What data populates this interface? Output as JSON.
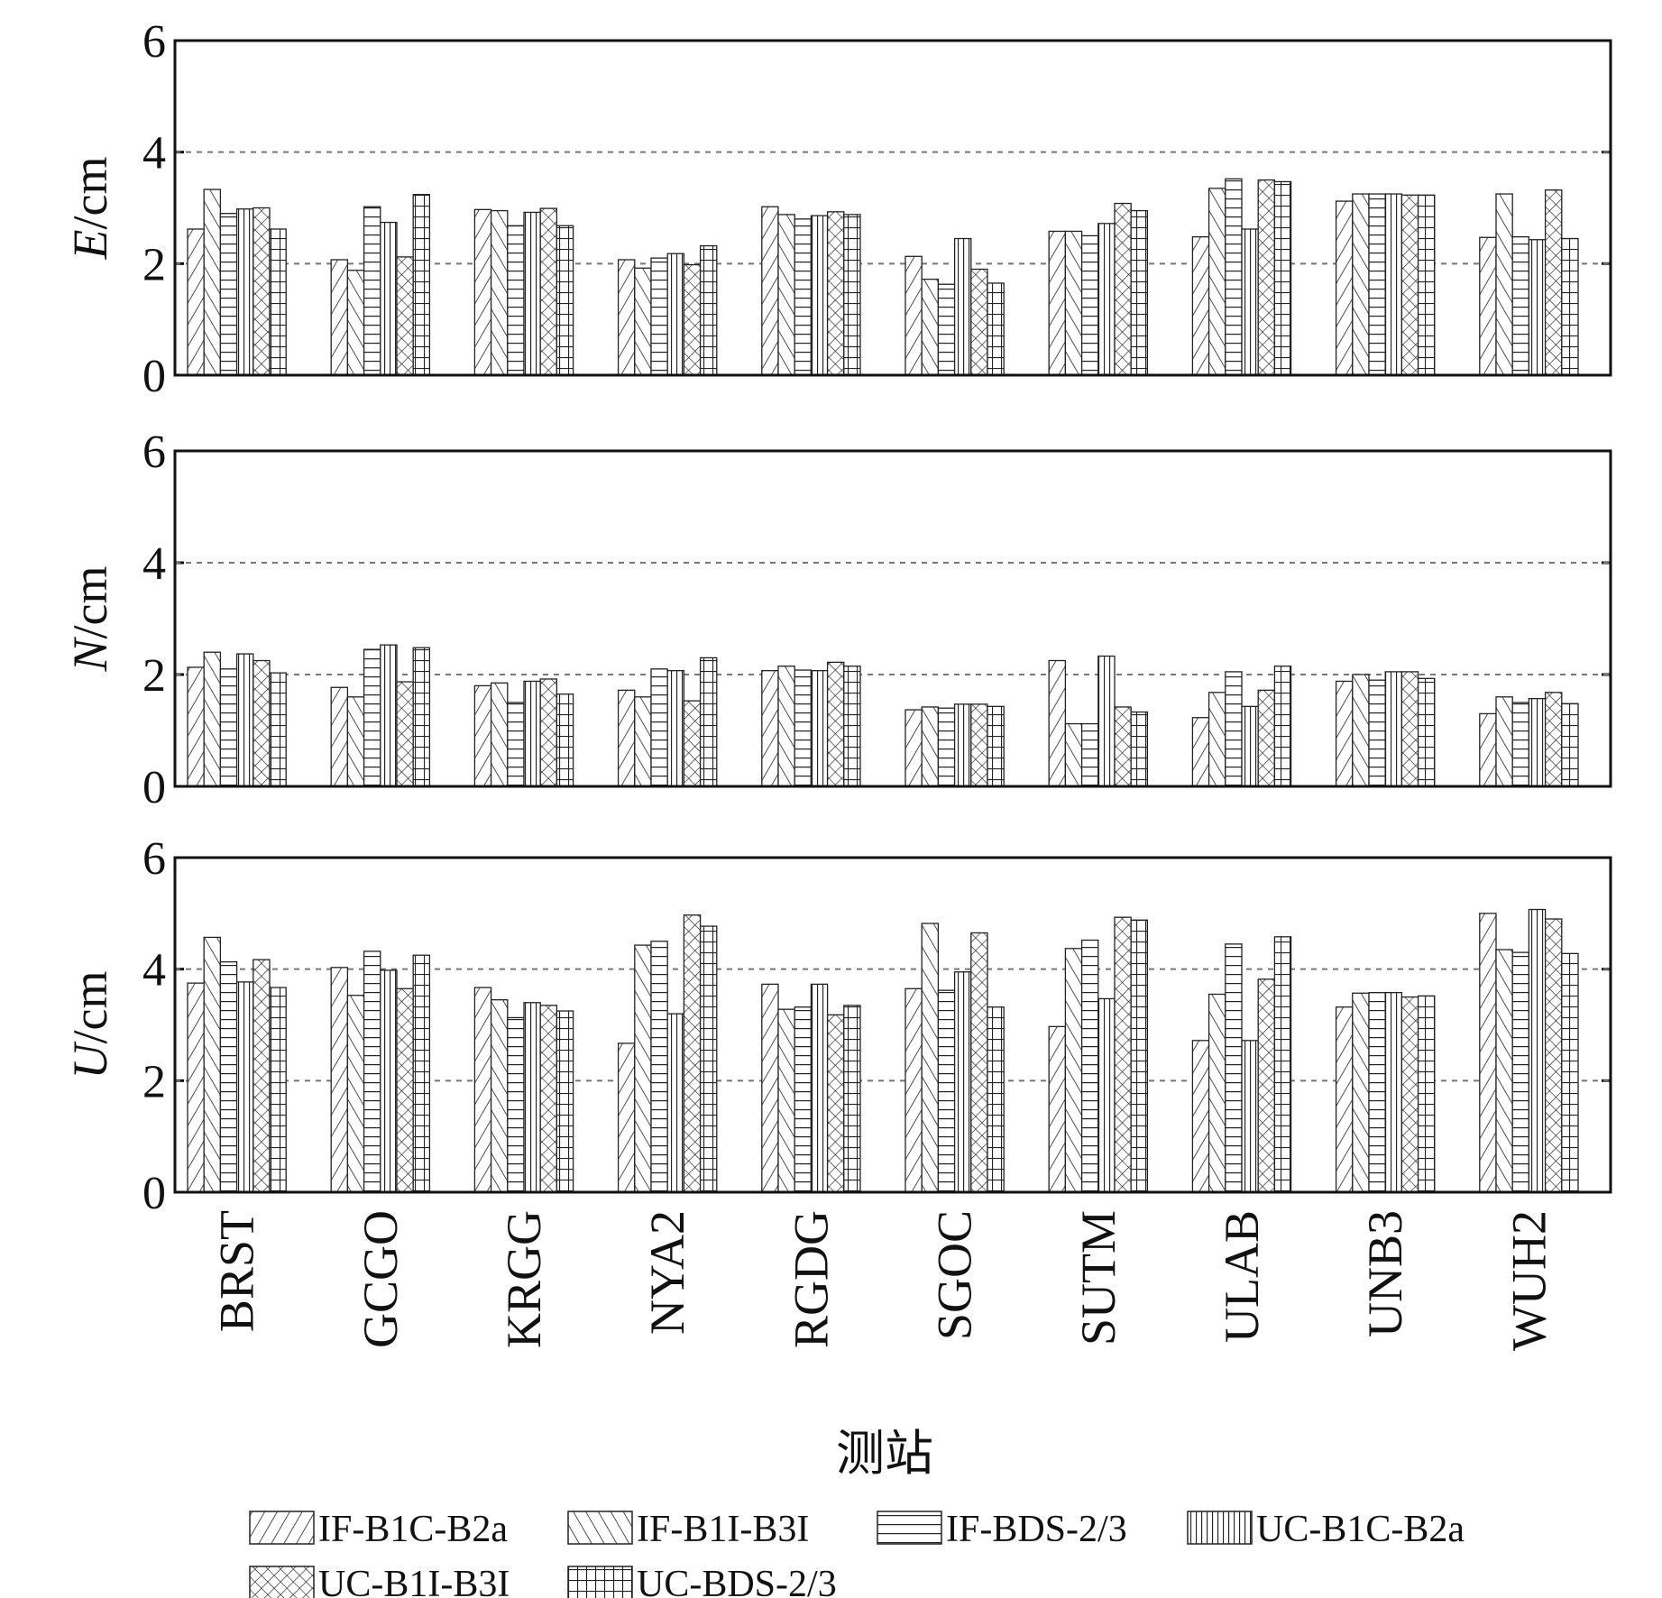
{
  "chart_data": {
    "type": "bar",
    "xlabel": "测站",
    "categories": [
      "BRST",
      "GCGO",
      "KRGG",
      "NYA2",
      "RGDG",
      "SGOC",
      "SUTM",
      "ULAB",
      "UNB3",
      "WUH2"
    ],
    "ylim": [
      0,
      6
    ],
    "yticks": [
      0,
      2,
      4,
      6
    ],
    "grid": true,
    "series": [
      {
        "name": "IF-B1C-B2a",
        "pattern": "diag-right"
      },
      {
        "name": "IF-B1I-B3I",
        "pattern": "diag-left"
      },
      {
        "name": "IF-BDS-2/3",
        "pattern": "horizontal"
      },
      {
        "name": "UC-B1C-B2a",
        "pattern": "vertical"
      },
      {
        "name": "UC-B1I-B3I",
        "pattern": "cross-diag"
      },
      {
        "name": "UC-BDS-2/3",
        "pattern": "grid"
      }
    ],
    "panels": [
      {
        "ylabel": "E/cm",
        "series": [
          {
            "values": [
              2.62,
              2.07,
              2.97,
              2.07,
              3.02,
              2.13,
              2.58,
              2.48,
              3.12,
              2.47
            ]
          },
          {
            "values": [
              3.33,
              1.88,
              2.95,
              1.92,
              2.88,
              1.72,
              2.58,
              3.35,
              3.25,
              3.25
            ]
          },
          {
            "values": [
              2.9,
              3.02,
              2.68,
              2.1,
              2.8,
              1.63,
              2.5,
              3.52,
              3.25,
              2.48
            ]
          },
          {
            "values": [
              2.98,
              2.74,
              2.92,
              2.18,
              2.86,
              2.45,
              2.72,
              2.62,
              3.25,
              2.43
            ]
          },
          {
            "values": [
              3.0,
              2.12,
              2.99,
              1.98,
              2.93,
              1.9,
              3.08,
              3.5,
              3.23,
              3.32
            ]
          },
          {
            "values": [
              2.62,
              3.24,
              2.68,
              2.32,
              2.88,
              1.65,
              2.95,
              3.47,
              3.23,
              2.45
            ]
          }
        ]
      },
      {
        "ylabel": "N/cm",
        "series": [
          {
            "values": [
              2.13,
              1.77,
              1.8,
              1.72,
              2.07,
              1.37,
              2.25,
              1.23,
              1.88,
              1.3
            ]
          },
          {
            "values": [
              2.4,
              1.6,
              1.85,
              1.6,
              2.15,
              1.42,
              1.12,
              1.68,
              2.0,
              1.6
            ]
          },
          {
            "values": [
              2.1,
              2.45,
              1.5,
              2.1,
              2.08,
              1.4,
              1.12,
              2.05,
              1.9,
              1.5
            ]
          },
          {
            "values": [
              2.37,
              2.53,
              1.88,
              2.07,
              2.07,
              1.47,
              2.33,
              1.43,
              2.05,
              1.57
            ]
          },
          {
            "values": [
              2.25,
              1.87,
              1.92,
              1.53,
              2.22,
              1.47,
              1.42,
              1.72,
              2.05,
              1.68
            ]
          },
          {
            "values": [
              2.03,
              2.48,
              1.65,
              2.3,
              2.15,
              1.43,
              1.33,
              2.15,
              1.93,
              1.48
            ]
          }
        ]
      },
      {
        "ylabel": "U/cm",
        "series": [
          {
            "values": [
              3.75,
              4.03,
              3.67,
              2.67,
              3.73,
              3.65,
              2.97,
              2.72,
              3.32,
              5.0
            ]
          },
          {
            "values": [
              4.57,
              3.53,
              3.45,
              4.43,
              3.28,
              4.82,
              4.37,
              3.55,
              3.57,
              4.35
            ]
          },
          {
            "values": [
              4.13,
              4.32,
              3.13,
              4.5,
              3.32,
              3.62,
              4.52,
              4.45,
              3.58,
              4.3
            ]
          },
          {
            "values": [
              3.77,
              3.98,
              3.4,
              3.2,
              3.73,
              3.95,
              3.47,
              2.72,
              3.58,
              5.07
            ]
          },
          {
            "values": [
              4.17,
              3.65,
              3.35,
              4.97,
              3.18,
              4.65,
              4.93,
              3.82,
              3.5,
              4.9
            ]
          },
          {
            "values": [
              3.67,
              4.25,
              3.25,
              4.77,
              3.35,
              3.32,
              4.88,
              4.58,
              3.52,
              4.28
            ]
          }
        ]
      }
    ]
  }
}
